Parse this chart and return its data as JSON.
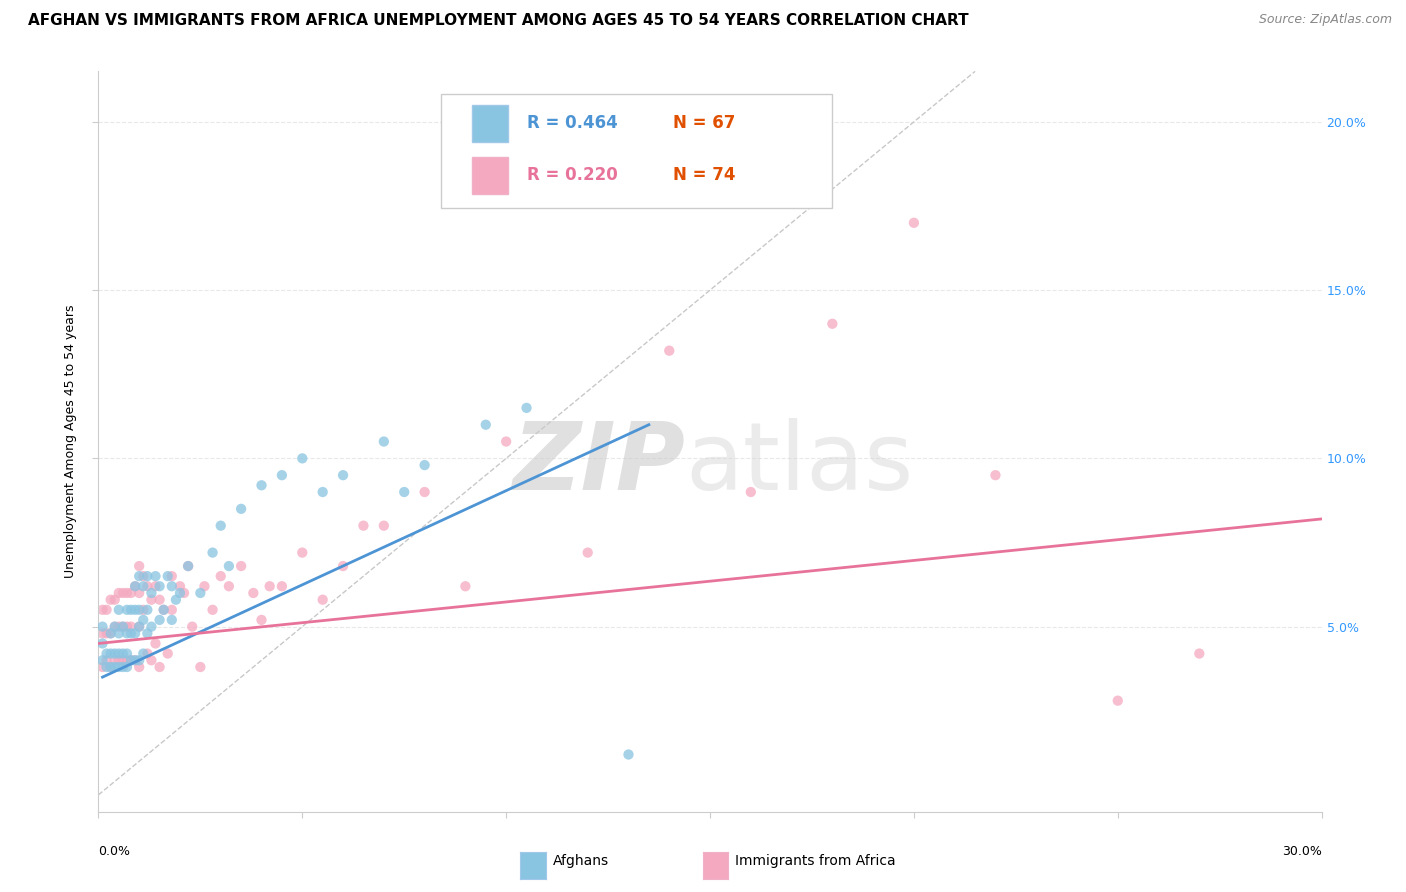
{
  "title": "AFGHAN VS IMMIGRANTS FROM AFRICA UNEMPLOYMENT AMONG AGES 45 TO 54 YEARS CORRELATION CHART",
  "source": "Source: ZipAtlas.com",
  "ylabel": "Unemployment Among Ages 45 to 54 years",
  "xlim": [
    0.0,
    0.3
  ],
  "ylim": [
    -0.005,
    0.215
  ],
  "yticks": [
    0.05,
    0.1,
    0.15,
    0.2
  ],
  "ytick_labels": [
    "5.0%",
    "10.0%",
    "15.0%",
    "20.0%"
  ],
  "legend_blue_r": "R = 0.464",
  "legend_blue_n": "N = 67",
  "legend_pink_r": "R = 0.220",
  "legend_pink_n": "N = 74",
  "blue_color": "#89c4e1",
  "pink_color": "#f4a9c0",
  "blue_line_color": "#4d94d4",
  "pink_line_color": "#e8739a",
  "diag_line_color": "#c8c8c8",
  "watermark_zip_color": "#d8d8d8",
  "watermark_atlas_color": "#d0d0d0",
  "title_fontsize": 11,
  "source_fontsize": 9,
  "axis_label_fontsize": 9,
  "tick_fontsize": 9,
  "legend_fontsize": 12,
  "background_color": "#ffffff",
  "grid_color": "#e8e8e8",
  "blue_scatter_x": [
    0.001,
    0.001,
    0.001,
    0.002,
    0.002,
    0.003,
    0.003,
    0.003,
    0.004,
    0.004,
    0.004,
    0.005,
    0.005,
    0.005,
    0.005,
    0.006,
    0.006,
    0.006,
    0.007,
    0.007,
    0.007,
    0.007,
    0.008,
    0.008,
    0.008,
    0.009,
    0.009,
    0.009,
    0.009,
    0.01,
    0.01,
    0.01,
    0.01,
    0.011,
    0.011,
    0.011,
    0.012,
    0.012,
    0.012,
    0.013,
    0.013,
    0.014,
    0.015,
    0.015,
    0.016,
    0.017,
    0.018,
    0.018,
    0.019,
    0.02,
    0.022,
    0.025,
    0.028,
    0.03,
    0.032,
    0.035,
    0.04,
    0.045,
    0.05,
    0.055,
    0.06,
    0.07,
    0.075,
    0.08,
    0.095,
    0.105,
    0.13
  ],
  "blue_scatter_y": [
    0.04,
    0.045,
    0.05,
    0.038,
    0.042,
    0.038,
    0.042,
    0.048,
    0.038,
    0.042,
    0.05,
    0.038,
    0.042,
    0.048,
    0.055,
    0.038,
    0.042,
    0.05,
    0.038,
    0.042,
    0.048,
    0.055,
    0.04,
    0.048,
    0.055,
    0.04,
    0.048,
    0.055,
    0.062,
    0.04,
    0.05,
    0.055,
    0.065,
    0.042,
    0.052,
    0.062,
    0.048,
    0.055,
    0.065,
    0.05,
    0.06,
    0.065,
    0.052,
    0.062,
    0.055,
    0.065,
    0.052,
    0.062,
    0.058,
    0.06,
    0.068,
    0.06,
    0.072,
    0.08,
    0.068,
    0.085,
    0.092,
    0.095,
    0.1,
    0.09,
    0.095,
    0.105,
    0.09,
    0.098,
    0.11,
    0.115,
    0.012
  ],
  "pink_scatter_x": [
    0.001,
    0.001,
    0.001,
    0.002,
    0.002,
    0.002,
    0.003,
    0.003,
    0.003,
    0.004,
    0.004,
    0.004,
    0.005,
    0.005,
    0.005,
    0.006,
    0.006,
    0.006,
    0.007,
    0.007,
    0.007,
    0.008,
    0.008,
    0.008,
    0.009,
    0.009,
    0.01,
    0.01,
    0.01,
    0.01,
    0.011,
    0.011,
    0.012,
    0.012,
    0.013,
    0.013,
    0.014,
    0.014,
    0.015,
    0.015,
    0.016,
    0.017,
    0.018,
    0.018,
    0.02,
    0.021,
    0.022,
    0.023,
    0.025,
    0.026,
    0.028,
    0.03,
    0.032,
    0.035,
    0.038,
    0.04,
    0.042,
    0.045,
    0.05,
    0.055,
    0.06,
    0.065,
    0.07,
    0.08,
    0.09,
    0.1,
    0.12,
    0.14,
    0.16,
    0.18,
    0.2,
    0.22,
    0.25,
    0.27
  ],
  "pink_scatter_y": [
    0.038,
    0.048,
    0.055,
    0.04,
    0.048,
    0.055,
    0.038,
    0.048,
    0.058,
    0.04,
    0.05,
    0.058,
    0.04,
    0.05,
    0.06,
    0.04,
    0.05,
    0.06,
    0.04,
    0.05,
    0.06,
    0.04,
    0.05,
    0.06,
    0.04,
    0.062,
    0.038,
    0.05,
    0.06,
    0.068,
    0.055,
    0.065,
    0.042,
    0.062,
    0.04,
    0.058,
    0.045,
    0.062,
    0.038,
    0.058,
    0.055,
    0.042,
    0.055,
    0.065,
    0.062,
    0.06,
    0.068,
    0.05,
    0.038,
    0.062,
    0.055,
    0.065,
    0.062,
    0.068,
    0.06,
    0.052,
    0.062,
    0.062,
    0.072,
    0.058,
    0.068,
    0.08,
    0.08,
    0.09,
    0.062,
    0.105,
    0.072,
    0.132,
    0.09,
    0.14,
    0.17,
    0.095,
    0.028,
    0.042
  ],
  "blue_line_x": [
    0.001,
    0.135
  ],
  "blue_line_y": [
    0.035,
    0.11
  ],
  "pink_line_x": [
    0.0,
    0.3
  ],
  "pink_line_y": [
    0.045,
    0.082
  ],
  "diag_line_x": [
    0.0,
    0.215
  ],
  "diag_line_y": [
    0.0,
    0.215
  ],
  "right_ytick_color": "#3399ff",
  "legend_n_color": "#e05000"
}
